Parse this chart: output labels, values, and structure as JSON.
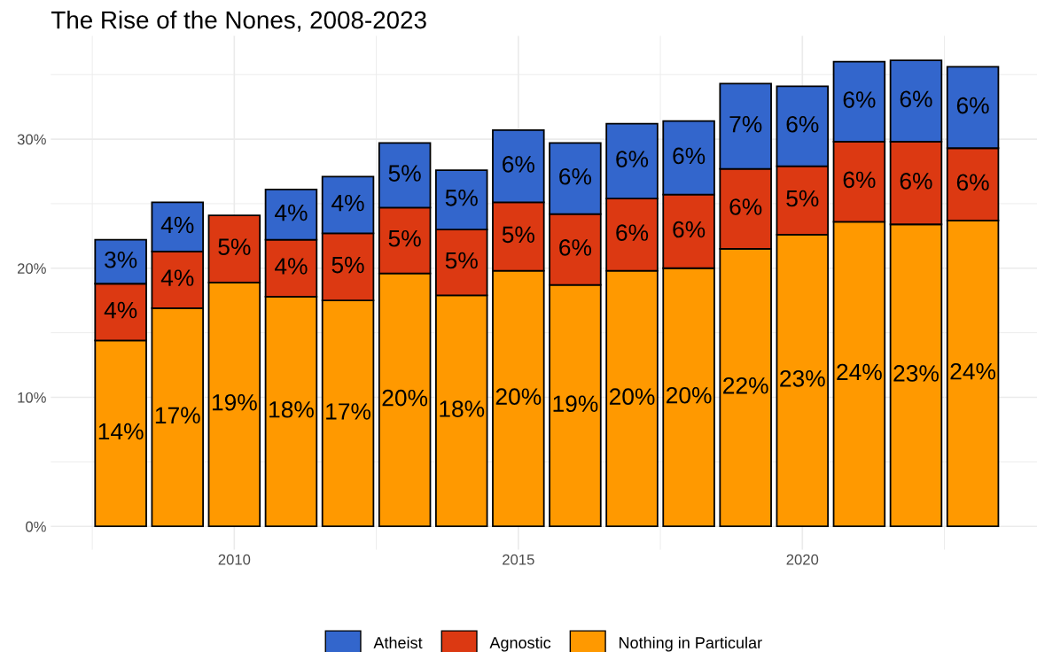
{
  "chart_data": {
    "type": "bar",
    "title": "The Rise of the Nones, 2008-2023",
    "stacked": true,
    "x": [
      2008,
      2009,
      2010,
      2011,
      2012,
      2013,
      2014,
      2015,
      2016,
      2017,
      2018,
      2019,
      2020,
      2021,
      2022,
      2023
    ],
    "series": [
      {
        "name": "Nothing in Particular",
        "color": "#ff9900",
        "values": [
          14.4,
          16.9,
          18.9,
          17.8,
          17.5,
          19.6,
          17.9,
          19.8,
          18.7,
          19.8,
          20.0,
          21.5,
          22.6,
          23.6,
          23.4,
          23.7
        ],
        "value_labels": [
          "14%",
          "17%",
          "19%",
          "18%",
          "17%",
          "20%",
          "18%",
          "20%",
          "19%",
          "20%",
          "20%",
          "22%",
          "23%",
          "24%",
          "23%",
          "24%"
        ]
      },
      {
        "name": "Agnostic",
        "color": "#dc3912",
        "values": [
          4.4,
          4.4,
          5.2,
          4.4,
          5.2,
          5.1,
          5.1,
          5.3,
          5.5,
          5.6,
          5.7,
          6.2,
          5.3,
          6.2,
          6.4,
          5.6
        ],
        "value_labels": [
          "4%",
          "4%",
          "5%",
          "4%",
          "5%",
          "5%",
          "5%",
          "5%",
          "6%",
          "6%",
          "6%",
          "6%",
          "5%",
          "6%",
          "6%",
          "6%"
        ]
      },
      {
        "name": "Atheist",
        "color": "#3366cc",
        "values": [
          3.4,
          3.8,
          null,
          3.9,
          4.4,
          5.0,
          4.6,
          5.6,
          5.5,
          5.8,
          5.7,
          6.6,
          6.2,
          6.2,
          6.3,
          6.3
        ],
        "value_labels": [
          "3%",
          "4%",
          null,
          "4%",
          "4%",
          "5%",
          "5%",
          "6%",
          "6%",
          "6%",
          "6%",
          "7%",
          "6%",
          "6%",
          "6%",
          "6%"
        ]
      }
    ],
    "xlim": [
      2006.77,
      2024.13
    ],
    "xticks": [
      2010,
      2015,
      2020
    ],
    "ylim": [
      -1.8,
      38.0
    ],
    "yticks": [
      {
        "value": 0,
        "label": "0%"
      },
      {
        "value": 10,
        "label": "10%"
      },
      {
        "value": 20,
        "label": "20%"
      },
      {
        "value": 30,
        "label": "30%"
      }
    ],
    "grid": true,
    "legend": "bottom"
  }
}
